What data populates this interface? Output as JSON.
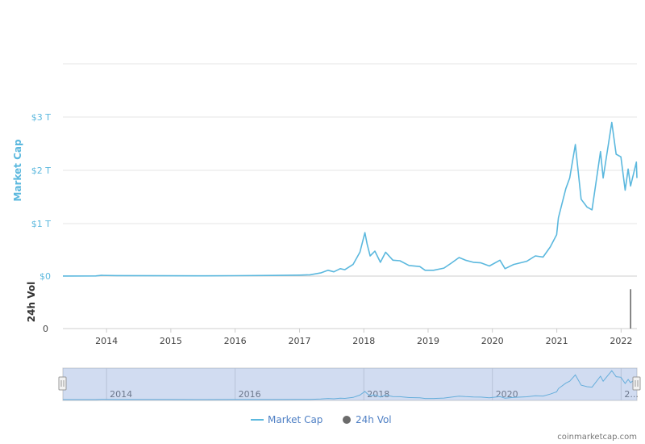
{
  "chart_data": {
    "type": "line",
    "title": "",
    "xlabel": "",
    "ylabel": "Market Cap",
    "y2label": "24h Vol",
    "x_tick_labels": [
      "2014",
      "2015",
      "2016",
      "2017",
      "2018",
      "2019",
      "2020",
      "2021",
      "2022"
    ],
    "y_tick_labels": [
      "$0",
      "$1 T",
      "$2 T",
      "$3 T"
    ],
    "vol_tick_labels": [
      "0"
    ],
    "ylim": [
      0,
      3
    ],
    "y_unit": "T USD",
    "xlim": [
      "2013-04-28",
      "2022-04-01"
    ],
    "legend": {
      "position": "bottom-center",
      "entries": [
        "Market Cap",
        "24h Vol"
      ]
    },
    "series": [
      {
        "name": "Market Cap",
        "color": "#5bb8de",
        "points": [
          [
            "2013-04-28",
            0.0016
          ],
          [
            "2013-11-01",
            0.003
          ],
          [
            "2013-12-04",
            0.014
          ],
          [
            "2014-03-01",
            0.009
          ],
          [
            "2014-12-01",
            0.006
          ],
          [
            "2015-06-01",
            0.004
          ],
          [
            "2016-01-01",
            0.007
          ],
          [
            "2016-08-01",
            0.012
          ],
          [
            "2017-01-01",
            0.018
          ],
          [
            "2017-03-01",
            0.025
          ],
          [
            "2017-05-01",
            0.06
          ],
          [
            "2017-06-12",
            0.11
          ],
          [
            "2017-07-15",
            0.08
          ],
          [
            "2017-08-20",
            0.14
          ],
          [
            "2017-09-15",
            0.12
          ],
          [
            "2017-11-01",
            0.22
          ],
          [
            "2017-12-10",
            0.45
          ],
          [
            "2018-01-07",
            0.82
          ],
          [
            "2018-01-20",
            0.6
          ],
          [
            "2018-02-06",
            0.38
          ],
          [
            "2018-03-05",
            0.47
          ],
          [
            "2018-04-05",
            0.26
          ],
          [
            "2018-05-05",
            0.45
          ],
          [
            "2018-06-15",
            0.3
          ],
          [
            "2018-07-25",
            0.29
          ],
          [
            "2018-09-15",
            0.2
          ],
          [
            "2018-11-15",
            0.18
          ],
          [
            "2018-12-15",
            0.11
          ],
          [
            "2019-02-01",
            0.11
          ],
          [
            "2019-04-01",
            0.15
          ],
          [
            "2019-05-15",
            0.25
          ],
          [
            "2019-06-26",
            0.35
          ],
          [
            "2019-08-01",
            0.3
          ],
          [
            "2019-09-15",
            0.26
          ],
          [
            "2019-10-28",
            0.25
          ],
          [
            "2019-12-15",
            0.19
          ],
          [
            "2020-02-13",
            0.3
          ],
          [
            "2020-03-13",
            0.14
          ],
          [
            "2020-05-01",
            0.22
          ],
          [
            "2020-07-15",
            0.28
          ],
          [
            "2020-09-01",
            0.38
          ],
          [
            "2020-10-15",
            0.36
          ],
          [
            "2020-11-25",
            0.55
          ],
          [
            "2020-12-31",
            0.78
          ],
          [
            "2021-01-10",
            1.1
          ],
          [
            "2021-02-21",
            1.65
          ],
          [
            "2021-03-15",
            1.85
          ],
          [
            "2021-04-16",
            2.48
          ],
          [
            "2021-05-19",
            1.45
          ],
          [
            "2021-06-22",
            1.3
          ],
          [
            "2021-07-20",
            1.25
          ],
          [
            "2021-09-06",
            2.35
          ],
          [
            "2021-09-21",
            1.85
          ],
          [
            "2021-11-09",
            2.9
          ],
          [
            "2021-12-04",
            2.3
          ],
          [
            "2021-12-31",
            2.25
          ],
          [
            "2022-01-24",
            1.62
          ],
          [
            "2022-02-10",
            2.02
          ],
          [
            "2022-02-24",
            1.7
          ],
          [
            "2022-03-29",
            2.15
          ],
          [
            "2022-04-01",
            1.85
          ]
        ]
      },
      {
        "name": "24h Vol",
        "color": "#555555",
        "points": [
          [
            "2022-02-24",
            1.0
          ]
        ]
      }
    ]
  },
  "navigator": {
    "tick_labels": [
      "2014",
      "2016",
      "2018",
      "2020",
      "2..."
    ]
  },
  "legend": {
    "market_cap_label": "Market Cap",
    "volume_label": "24h Vol"
  },
  "credit": "coinmarketcap.com"
}
